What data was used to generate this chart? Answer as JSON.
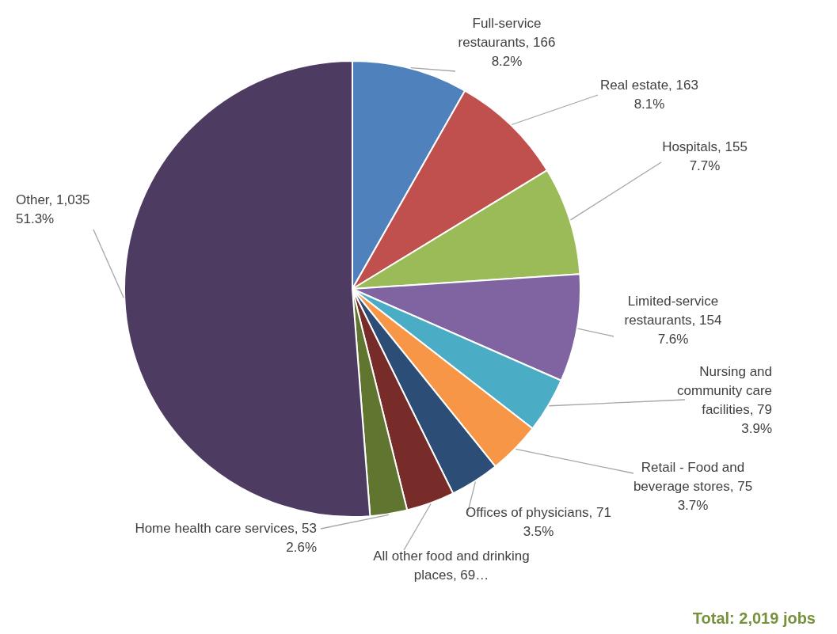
{
  "chart_data": {
    "type": "pie",
    "categories": [
      "Full-service restaurants",
      "Real estate",
      "Hospitals",
      "Limited-service restaurants",
      "Nursing and community care facilities",
      "Retail - Food and beverage stores",
      "Offices of physicians",
      "All other food and drinking places",
      "Home health care services",
      "Other"
    ],
    "values": [
      166,
      163,
      155,
      154,
      79,
      75,
      71,
      69,
      53,
      1035
    ],
    "value_labels": [
      "166\n8.2%",
      "163\n8.1%",
      "155\n7.7%",
      "154\n7.6%",
      "79\n3.9%",
      "75\n3.7%",
      "71\n3.5%",
      "69…",
      "53\n2.6%",
      "1,035\n51.3%"
    ],
    "colors": [
      "#4f81bd",
      "#c0504d",
      "#9bbb59",
      "#8064a2",
      "#4bacc6",
      "#f79646",
      "#2c4d75",
      "#772c2a",
      "#5f7530",
      "#4d3b62"
    ],
    "annotations": [
      "Total: 2,019 jobs"
    ],
    "legend": false
  }
}
